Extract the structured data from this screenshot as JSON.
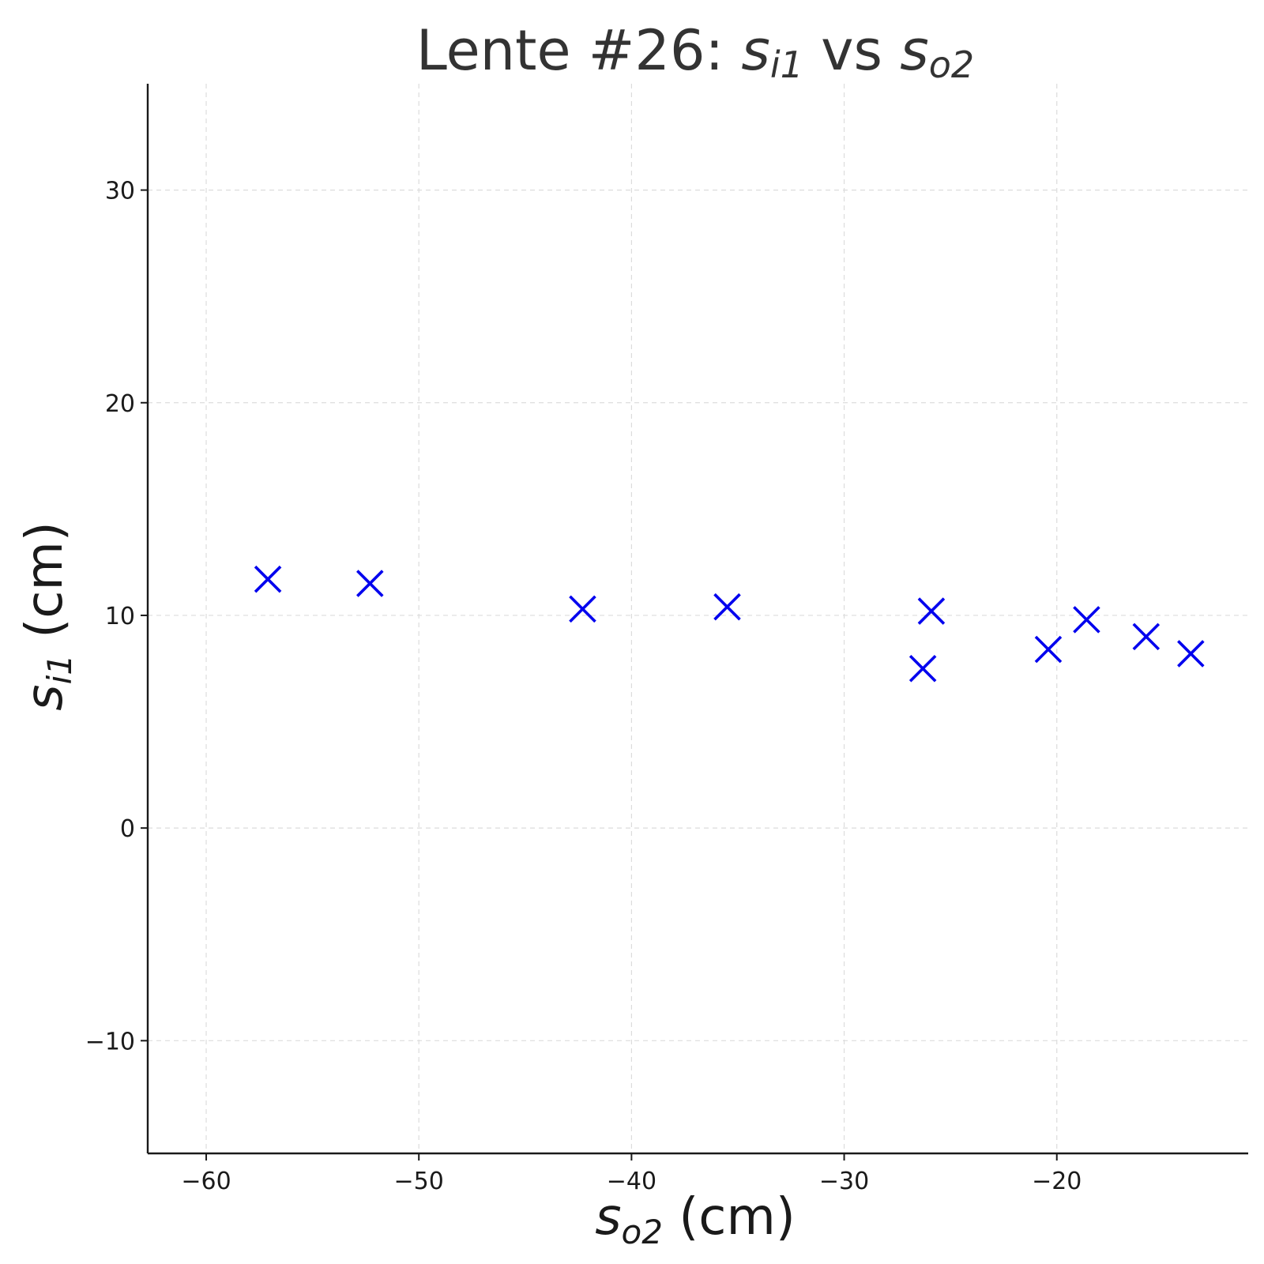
{
  "chart_data": {
    "type": "scatter",
    "title": {
      "prefix": "Lente #26: ",
      "y_var": "s",
      "y_sub": "i1",
      "mid": " vs ",
      "x_var": "s",
      "x_sub": "o2"
    },
    "xlabel": {
      "var": "s",
      "sub": "o2",
      "unit": " (cm)"
    },
    "ylabel": {
      "var": "s",
      "sub": "i1",
      "unit": " (cm)"
    },
    "xlim": [
      -62.75,
      -11.0
    ],
    "ylim": [
      -15.3,
      35.0
    ],
    "xticks": [
      -60,
      -50,
      -40,
      -30,
      -20
    ],
    "yticks": [
      -10,
      0,
      10,
      20,
      30
    ],
    "xtick_labels": [
      "−60",
      "−50",
      "−40",
      "−30",
      "−20"
    ],
    "ytick_labels": [
      "−10",
      "0",
      "10",
      "20",
      "30"
    ],
    "grid": true,
    "marker": "x",
    "marker_color": "#0000ee",
    "series": [
      {
        "x": [
          -57.1,
          -52.3,
          -42.3,
          -35.5,
          -26.3,
          -25.9,
          -20.4,
          -18.6,
          -15.8,
          -13.7
        ],
        "y": [
          11.7,
          11.5,
          10.3,
          10.4,
          7.5,
          10.2,
          8.4,
          9.8,
          9.0,
          8.2
        ]
      }
    ]
  }
}
